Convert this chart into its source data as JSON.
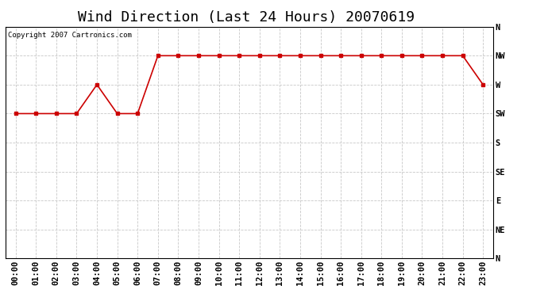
{
  "title": "Wind Direction (Last 24 Hours) 20070619",
  "copyright_text": "Copyright 2007 Cartronics.com",
  "background_color": "#ffffff",
  "plot_background_color": "#ffffff",
  "line_color": "#cc0000",
  "marker_color": "#cc0000",
  "grid_color": "#c8c8c8",
  "y_labels_top_to_bottom": [
    "N",
    "NW",
    "W",
    "SW",
    "S",
    "SE",
    "E",
    "NE",
    "N"
  ],
  "x_labels": [
    "00:00",
    "01:00",
    "02:00",
    "03:00",
    "04:00",
    "05:00",
    "06:00",
    "07:00",
    "08:00",
    "09:00",
    "10:00",
    "11:00",
    "12:00",
    "13:00",
    "14:00",
    "15:00",
    "16:00",
    "17:00",
    "18:00",
    "19:00",
    "20:00",
    "21:00",
    "22:00",
    "23:00"
  ],
  "wind_data": [
    5,
    5,
    5,
    5,
    6,
    5,
    5,
    7,
    7,
    7,
    7,
    7,
    7,
    7,
    7,
    7,
    7,
    7,
    7,
    7,
    7,
    7,
    7,
    6
  ],
  "ylim": [
    0,
    8
  ],
  "title_fontsize": 13,
  "tick_fontsize": 7.5,
  "copyright_fontsize": 6.5
}
